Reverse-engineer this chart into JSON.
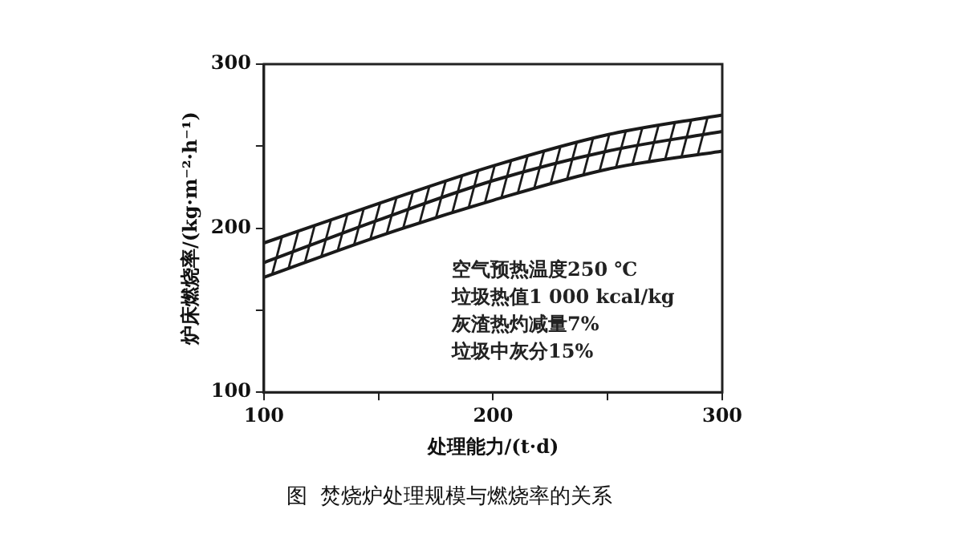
{
  "chart_data": {
    "type": "line",
    "title": "图  焚烧炉处理规模与燃烧率的关系",
    "xlabel": "处理能力/(t·d)",
    "ylabel": "炉床燃烧率/(kg·m⁻²·h⁻¹)",
    "x": [
      100,
      150,
      200,
      250,
      300
    ],
    "series": [
      {
        "color": "#1a1a1a",
        "values": [
          191,
          215,
          238,
          257,
          269
        ]
      },
      {
        "color": "#1a1a1a",
        "values": [
          179,
          205,
          229,
          247,
          259
        ]
      },
      {
        "color": "#1a1a1a",
        "values": [
          170,
          195,
          217,
          236,
          247
        ]
      }
    ],
    "xlim": [
      100,
      300
    ],
    "xticks": [
      100,
      {
        "value": 150,
        "label": null
      },
      200,
      {
        "value": 250,
        "label": null
      },
      300
    ],
    "ylim": [
      100,
      300
    ],
    "yticks": [
      100,
      {
        "value": 150,
        "label": null
      },
      200,
      {
        "value": 250,
        "label": null
      },
      300
    ],
    "annotations": [
      "空气预热温度250 ℃",
      "垃圾热值1 000 kcal/kg",
      "灰渣热灼减量7%",
      "垃圾中灰分15%"
    ],
    "grid": false,
    "legend": false,
    "marker": "none",
    "line_style": "solid"
  }
}
